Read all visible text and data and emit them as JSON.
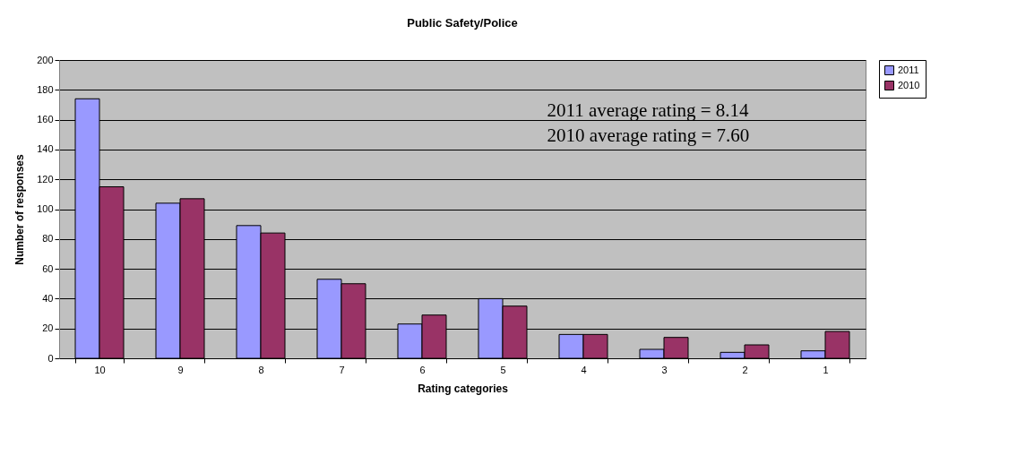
{
  "chart_data": {
    "type": "bar",
    "title": "Public Safety/Police",
    "xlabel": "Rating categories",
    "ylabel": "Number of responses",
    "categories": [
      "10",
      "9",
      "8",
      "7",
      "6",
      "5",
      "4",
      "3",
      "2",
      "1"
    ],
    "series": [
      {
        "name": "2011",
        "color": "#9999ff",
        "values": [
          174,
          104,
          89,
          53,
          23,
          40,
          16,
          6,
          4,
          5
        ]
      },
      {
        "name": "2010",
        "color": "#993366",
        "values": [
          115,
          107,
          84,
          50,
          29,
          35,
          16,
          14,
          9,
          18
        ]
      }
    ],
    "ylim": [
      0,
      200
    ],
    "yticks": [
      0,
      20,
      40,
      60,
      80,
      100,
      120,
      140,
      160,
      180,
      200
    ],
    "grid": "y",
    "legend": "right",
    "annotations": [
      "2011 average rating = 8.14",
      "2010 average rating = 7.60"
    ]
  }
}
